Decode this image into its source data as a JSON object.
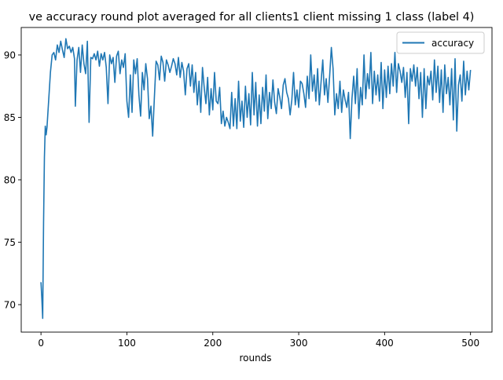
{
  "chart_data": {
    "type": "line",
    "title": "ve accuracy round plot averaged for all clients1 client missing 1 class (label 4)",
    "xlabel": "rounds",
    "ylabel": "",
    "xlim": [
      -23,
      525
    ],
    "ylim": [
      67.8,
      92.2
    ],
    "xticks": [
      0,
      100,
      200,
      300,
      400,
      500
    ],
    "yticks": [
      70,
      75,
      80,
      85,
      90
    ],
    "ytick_labels": [
      "70",
      "75",
      "80",
      "85",
      "90"
    ],
    "legend_position": "top-right",
    "series": [
      {
        "name": "accuracy",
        "color": "#1f77b4",
        "points": [
          [
            0,
            71.8
          ],
          [
            1,
            70.5
          ],
          [
            2,
            68.9
          ],
          [
            3,
            76.5
          ],
          [
            4,
            81.8
          ],
          [
            5,
            84.3
          ],
          [
            6,
            83.6
          ],
          [
            7,
            84.2
          ],
          [
            9,
            86.4
          ],
          [
            11,
            88.6
          ],
          [
            13,
            90.0
          ],
          [
            15,
            90.2
          ],
          [
            17,
            89.6
          ],
          [
            19,
            90.8
          ],
          [
            21,
            90.2
          ],
          [
            23,
            91.1
          ],
          [
            25,
            90.4
          ],
          [
            27,
            89.8
          ],
          [
            29,
            91.3
          ],
          [
            31,
            90.5
          ],
          [
            33,
            90.7
          ],
          [
            35,
            90.2
          ],
          [
            37,
            90.6
          ],
          [
            39,
            89.7
          ],
          [
            40,
            85.9
          ],
          [
            42,
            89.6
          ],
          [
            44,
            90.6
          ],
          [
            46,
            88.6
          ],
          [
            48,
            90.8
          ],
          [
            50,
            89.3
          ],
          [
            52,
            88.5
          ],
          [
            54,
            91.1
          ],
          [
            56,
            84.6
          ],
          [
            58,
            89.8
          ],
          [
            60,
            89.7
          ],
          [
            62,
            90.1
          ],
          [
            64,
            89.6
          ],
          [
            66,
            90.3
          ],
          [
            68,
            89.1
          ],
          [
            70,
            90.1
          ],
          [
            72,
            89.6
          ],
          [
            74,
            90.2
          ],
          [
            76,
            89.0
          ],
          [
            78,
            86.1
          ],
          [
            80,
            90.0
          ],
          [
            82,
            89.3
          ],
          [
            84,
            89.8
          ],
          [
            86,
            87.8
          ],
          [
            88,
            89.9
          ],
          [
            90,
            90.3
          ],
          [
            92,
            88.5
          ],
          [
            94,
            89.6
          ],
          [
            96,
            89.0
          ],
          [
            98,
            90.1
          ],
          [
            100,
            86.3
          ],
          [
            102,
            85.0
          ],
          [
            104,
            88.4
          ],
          [
            106,
            85.4
          ],
          [
            108,
            89.6
          ],
          [
            110,
            88.5
          ],
          [
            112,
            89.7
          ],
          [
            114,
            86.8
          ],
          [
            116,
            85.1
          ],
          [
            118,
            88.6
          ],
          [
            120,
            87.2
          ],
          [
            122,
            89.3
          ],
          [
            124,
            88.1
          ],
          [
            126,
            84.9
          ],
          [
            128,
            85.9
          ],
          [
            130,
            83.5
          ],
          [
            132,
            86.6
          ],
          [
            134,
            89.5
          ],
          [
            136,
            89.2
          ],
          [
            138,
            88.0
          ],
          [
            140,
            89.9
          ],
          [
            142,
            89.4
          ],
          [
            144,
            87.9
          ],
          [
            146,
            89.6
          ],
          [
            148,
            89.2
          ],
          [
            150,
            88.6
          ],
          [
            152,
            89.1
          ],
          [
            154,
            89.7
          ],
          [
            156,
            89.3
          ],
          [
            158,
            88.4
          ],
          [
            160,
            89.8
          ],
          [
            162,
            88.2
          ],
          [
            164,
            89.4
          ],
          [
            166,
            88.7
          ],
          [
            168,
            86.8
          ],
          [
            170,
            88.9
          ],
          [
            172,
            89.3
          ],
          [
            174,
            87.5
          ],
          [
            176,
            89.2
          ],
          [
            178,
            87.0
          ],
          [
            180,
            88.6
          ],
          [
            182,
            86.0
          ],
          [
            184,
            87.9
          ],
          [
            186,
            85.4
          ],
          [
            188,
            89.0
          ],
          [
            190,
            87.4
          ],
          [
            192,
            86.1
          ],
          [
            194,
            88.2
          ],
          [
            196,
            85.2
          ],
          [
            198,
            87.3
          ],
          [
            200,
            85.6
          ],
          [
            202,
            88.6
          ],
          [
            204,
            86.3
          ],
          [
            206,
            86.1
          ],
          [
            208,
            87.4
          ],
          [
            210,
            84.5
          ],
          [
            212,
            85.5
          ],
          [
            214,
            84.3
          ],
          [
            216,
            85.0
          ],
          [
            218,
            84.6
          ],
          [
            220,
            84.1
          ],
          [
            222,
            87.0
          ],
          [
            224,
            84.3
          ],
          [
            226,
            86.5
          ],
          [
            228,
            84.1
          ],
          [
            230,
            87.9
          ],
          [
            232,
            84.7
          ],
          [
            234,
            86.3
          ],
          [
            236,
            84.2
          ],
          [
            238,
            87.5
          ],
          [
            240,
            85.0
          ],
          [
            242,
            86.9
          ],
          [
            244,
            84.4
          ],
          [
            246,
            88.6
          ],
          [
            248,
            85.2
          ],
          [
            250,
            87.8
          ],
          [
            252,
            84.3
          ],
          [
            254,
            86.8
          ],
          [
            256,
            84.5
          ],
          [
            258,
            87.4
          ],
          [
            260,
            85.5
          ],
          [
            262,
            88.4
          ],
          [
            264,
            84.9
          ],
          [
            266,
            87.0
          ],
          [
            268,
            85.7
          ],
          [
            270,
            88.0
          ],
          [
            272,
            86.2
          ],
          [
            274,
            85.3
          ],
          [
            276,
            87.3
          ],
          [
            278,
            86.6
          ],
          [
            280,
            85.7
          ],
          [
            282,
            87.6
          ],
          [
            284,
            88.1
          ],
          [
            286,
            87.0
          ],
          [
            288,
            86.5
          ],
          [
            290,
            85.2
          ],
          [
            292,
            86.4
          ],
          [
            294,
            88.6
          ],
          [
            296,
            86.0
          ],
          [
            298,
            87.2
          ],
          [
            300,
            85.8
          ],
          [
            302,
            87.9
          ],
          [
            304,
            87.7
          ],
          [
            306,
            86.9
          ],
          [
            308,
            85.8
          ],
          [
            310,
            88.3
          ],
          [
            312,
            86.5
          ],
          [
            314,
            90.0
          ],
          [
            316,
            87.1
          ],
          [
            318,
            88.4
          ],
          [
            320,
            86.3
          ],
          [
            322,
            88.9
          ],
          [
            324,
            86.0
          ],
          [
            326,
            87.8
          ],
          [
            328,
            89.6
          ],
          [
            330,
            86.8
          ],
          [
            332,
            88.1
          ],
          [
            334,
            86.2
          ],
          [
            336,
            88.3
          ],
          [
            338,
            90.6
          ],
          [
            340,
            88.9
          ],
          [
            342,
            85.2
          ],
          [
            344,
            86.9
          ],
          [
            346,
            85.7
          ],
          [
            348,
            87.9
          ],
          [
            350,
            85.4
          ],
          [
            352,
            87.2
          ],
          [
            354,
            86.4
          ],
          [
            356,
            85.8
          ],
          [
            358,
            87.0
          ],
          [
            360,
            83.3
          ],
          [
            362,
            86.5
          ],
          [
            364,
            88.3
          ],
          [
            366,
            86.1
          ],
          [
            368,
            88.9
          ],
          [
            370,
            84.9
          ],
          [
            372,
            87.4
          ],
          [
            374,
            86.0
          ],
          [
            376,
            90.0
          ],
          [
            378,
            86.5
          ],
          [
            380,
            88.5
          ],
          [
            382,
            87.3
          ],
          [
            384,
            90.2
          ],
          [
            386,
            86.1
          ],
          [
            388,
            88.7
          ],
          [
            390,
            86.8
          ],
          [
            392,
            88.4
          ],
          [
            394,
            86.3
          ],
          [
            396,
            89.4
          ],
          [
            398,
            85.7
          ],
          [
            400,
            88.8
          ],
          [
            402,
            86.6
          ],
          [
            404,
            89.1
          ],
          [
            406,
            86.9
          ],
          [
            408,
            89.3
          ],
          [
            410,
            87.5
          ],
          [
            412,
            90.2
          ],
          [
            414,
            87.0
          ],
          [
            416,
            89.3
          ],
          [
            418,
            88.7
          ],
          [
            420,
            87.8
          ],
          [
            422,
            89.0
          ],
          [
            424,
            86.6
          ],
          [
            426,
            88.6
          ],
          [
            428,
            84.5
          ],
          [
            430,
            88.9
          ],
          [
            432,
            87.9
          ],
          [
            434,
            89.2
          ],
          [
            436,
            87.5
          ],
          [
            438,
            89.0
          ],
          [
            440,
            86.5
          ],
          [
            442,
            88.6
          ],
          [
            444,
            85.0
          ],
          [
            446,
            88.9
          ],
          [
            448,
            85.7
          ],
          [
            450,
            88.3
          ],
          [
            452,
            87.6
          ],
          [
            454,
            88.7
          ],
          [
            456,
            86.4
          ],
          [
            458,
            89.6
          ],
          [
            460,
            87.0
          ],
          [
            462,
            89.1
          ],
          [
            464,
            86.2
          ],
          [
            466,
            88.8
          ],
          [
            468,
            85.4
          ],
          [
            470,
            89.2
          ],
          [
            472,
            86.9
          ],
          [
            474,
            88.2
          ],
          [
            476,
            86.0
          ],
          [
            478,
            88.9
          ],
          [
            480,
            84.8
          ],
          [
            482,
            89.7
          ],
          [
            484,
            83.9
          ],
          [
            486,
            87.6
          ],
          [
            488,
            88.4
          ],
          [
            490,
            86.3
          ],
          [
            492,
            89.5
          ],
          [
            494,
            86.8
          ],
          [
            496,
            88.7
          ],
          [
            498,
            87.2
          ],
          [
            500,
            88.8
          ]
        ]
      }
    ]
  }
}
